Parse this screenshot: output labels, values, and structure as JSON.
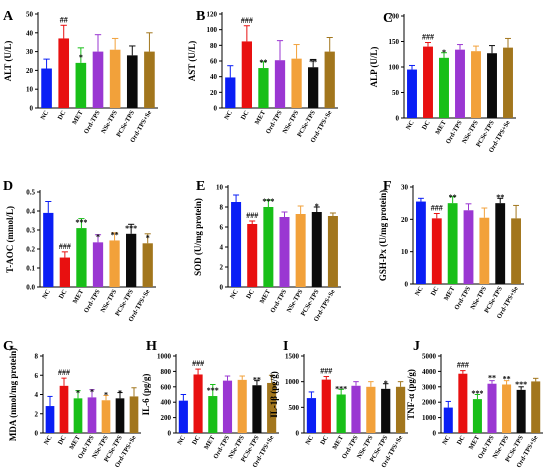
{
  "chart_data": [
    {
      "panel": "A",
      "type": "bar",
      "ylabel": "ALT (U/L)",
      "categories": [
        "NC",
        "DC",
        "MET",
        "Ord-TPS",
        "NSe-TPS",
        "PCSe-TPS",
        "Ord-TPS+Se"
      ],
      "values": [
        21,
        37,
        24,
        30,
        31,
        28,
        30
      ],
      "errors": [
        5,
        7,
        8,
        9,
        6,
        5,
        10
      ],
      "annotations": [
        "",
        "##",
        "*",
        "",
        "",
        "",
        ""
      ],
      "ylim": [
        0,
        50
      ],
      "yticks": [
        0,
        10,
        20,
        30,
        40,
        50
      ]
    },
    {
      "panel": "B",
      "type": "bar",
      "ylabel": "AST (U/L)",
      "categories": [
        "NC",
        "DC",
        "MET",
        "Ord-TPS",
        "NSe-TPS",
        "PCSe-TPS",
        "Ord-TPS+Se"
      ],
      "values": [
        39,
        85,
        51,
        61,
        63,
        52,
        72
      ],
      "errors": [
        15,
        20,
        8,
        25,
        18,
        10,
        18
      ],
      "annotations": [
        "",
        "###",
        "**",
        "",
        "",
        "**",
        ""
      ],
      "ylim": [
        0,
        120
      ],
      "yticks": [
        0,
        20,
        40,
        60,
        80,
        100,
        120
      ]
    },
    {
      "panel": "C",
      "type": "bar",
      "ylabel": "ALP (U/L)",
      "categories": [
        "NC",
        "DC",
        "MET",
        "Ord-TPS",
        "NSe-TPS",
        "PCSe-TPS",
        "Ord-TPS+Se"
      ],
      "values": [
        95,
        140,
        118,
        134,
        131,
        127,
        138
      ],
      "errors": [
        8,
        8,
        10,
        10,
        10,
        15,
        18
      ],
      "annotations": [
        "",
        "###",
        "*",
        "",
        "",
        "",
        ""
      ],
      "ylim": [
        0,
        200
      ],
      "yticks": [
        0,
        50,
        100,
        150,
        200
      ]
    },
    {
      "panel": "D",
      "type": "bar",
      "ylabel": "T-AOC (mmol/L)",
      "categories": [
        "NC",
        "DC",
        "MET",
        "Ord-TPS",
        "NSe-TPS",
        "PCSe-TPS",
        "Ord-TPS+Se"
      ],
      "values": [
        0.39,
        0.155,
        0.31,
        0.235,
        0.245,
        0.28,
        0.23
      ],
      "errors": [
        0.06,
        0.03,
        0.05,
        0.04,
        0.04,
        0.05,
        0.05
      ],
      "annotations": [
        "",
        "###",
        "***",
        "*",
        "**",
        "***",
        "*"
      ],
      "ylim": [
        0,
        0.5
      ],
      "yticks": [
        0.0,
        0.1,
        0.2,
        0.3,
        0.4,
        0.5
      ]
    },
    {
      "panel": "E",
      "type": "bar",
      "ylabel": "SOD (U/mg protein)",
      "categories": [
        "NC",
        "DC",
        "MET",
        "Ord-TPS",
        "NSe-TPS",
        "PCSe-TPS",
        "Ord-TPS+Se"
      ],
      "values": [
        8.5,
        6.3,
        8.0,
        7.0,
        7.3,
        7.5,
        7.1
      ],
      "errors": [
        0.7,
        0.3,
        0.7,
        0.5,
        0.8,
        0.5,
        0.3
      ],
      "annotations": [
        "",
        "###",
        "***",
        "",
        "",
        "*",
        ""
      ],
      "ylim": [
        0,
        10
      ],
      "yticks": [
        0,
        2,
        4,
        6,
        8,
        10
      ]
    },
    {
      "panel": "F",
      "type": "bar",
      "ylabel": "GSH-Px (U/mg protein)",
      "categories": [
        "NC",
        "DC",
        "MET",
        "Ord-TPS",
        "NSe-TPS",
        "PCSe-TPS",
        "Ord-TPS+Se"
      ],
      "values": [
        25.5,
        20.3,
        25.0,
        22.8,
        20.5,
        25.0,
        20.3
      ],
      "errors": [
        1.0,
        1.5,
        2.0,
        2.0,
        3.0,
        1.5,
        4.0
      ],
      "annotations": [
        "",
        "###",
        "**",
        "",
        "",
        "**",
        ""
      ],
      "ylim": [
        0,
        30
      ],
      "yticks": [
        0,
        10,
        20,
        30
      ]
    },
    {
      "panel": "G",
      "type": "bar",
      "ylabel": "MDA (nmol/mg protein)",
      "categories": [
        "NC",
        "DC",
        "MET",
        "Ord-TPS",
        "NSe-TPS",
        "PCSe-TPS",
        "Ord-TPS+Se"
      ],
      "values": [
        2.8,
        4.9,
        3.6,
        3.7,
        3.4,
        3.6,
        3.8
      ],
      "errors": [
        1.0,
        0.8,
        0.8,
        0.8,
        0.5,
        0.6,
        0.9
      ],
      "annotations": [
        "",
        "###",
        "*",
        "*",
        "*",
        "*",
        ""
      ],
      "ylim": [
        0,
        8
      ],
      "yticks": [
        0,
        2,
        4,
        6,
        8
      ]
    },
    {
      "panel": "H",
      "type": "bar",
      "ylabel": "IL-6 (pg/g)",
      "categories": [
        "NC",
        "DC",
        "MET",
        "Ord-TPS",
        "NSe-TPS",
        "PCSe-TPS",
        "Ord-TPS+Se"
      ],
      "values": [
        420,
        760,
        480,
        680,
        690,
        620,
        650
      ],
      "errors": [
        80,
        70,
        150,
        60,
        50,
        60,
        100
      ],
      "annotations": [
        "",
        "###",
        "***",
        "",
        "",
        "**",
        "*"
      ],
      "ylim": [
        0,
        1000
      ],
      "yticks": [
        0,
        200,
        400,
        600,
        800,
        1000
      ]
    },
    {
      "panel": "I",
      "type": "bar",
      "ylabel": "IL-1β (pg/g)",
      "categories": [
        "NC",
        "DC",
        "MET",
        "Ord-TPS",
        "NSe-TPS",
        "PCSe-TPS",
        "Ord-TPS+Se"
      ],
      "values": [
        680,
        1040,
        750,
        920,
        900,
        860,
        900
      ],
      "errors": [
        120,
        60,
        100,
        80,
        100,
        100,
        100
      ],
      "annotations": [
        "",
        "###",
        "***",
        "",
        "",
        "*",
        ""
      ],
      "ylim": [
        0,
        1500
      ],
      "yticks": [
        0,
        500,
        1000,
        1500
      ]
    },
    {
      "panel": "J",
      "type": "bar",
      "ylabel": "TNF-α (pg/g)",
      "categories": [
        "NC",
        "DC",
        "MET",
        "Ord-TPS",
        "NSe-TPS",
        "PCSe-TPS",
        "Ord-TPS+Se"
      ],
      "values": [
        1650,
        3850,
        2200,
        3200,
        3150,
        2800,
        3350
      ],
      "errors": [
        400,
        200,
        300,
        200,
        250,
        200,
        200
      ],
      "annotations": [
        "",
        "###",
        "***",
        "**",
        "**",
        "***",
        ""
      ],
      "ylim": [
        0,
        5000
      ],
      "yticks": [
        0,
        1000,
        2000,
        3000,
        4000,
        5000
      ]
    }
  ],
  "bar_colors": [
    "#0a1ef5",
    "#e81010",
    "#18bf18",
    "#9a37d2",
    "#f2a13a",
    "#0b0b0b",
    "#a2761d"
  ]
}
